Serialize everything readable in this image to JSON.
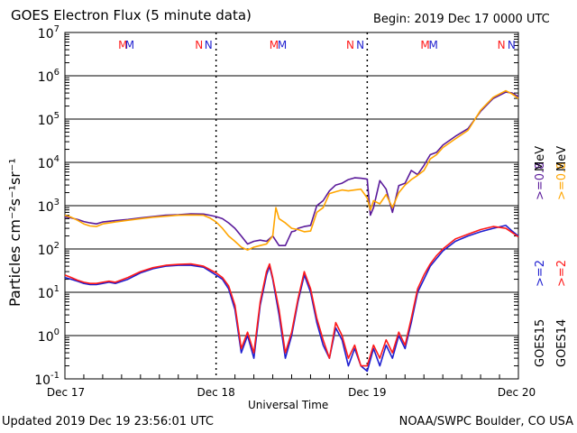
{
  "title": "GOES Electron Flux (5 minute data)",
  "begin_label": "Begin: 2019 Dec 17 0000 UTC",
  "updated_label": "Updated 2019 Dec 19 23:56:01 UTC",
  "credit_label": "NOAA/SWPC Boulder, CO USA",
  "colors": {
    "goes15_low": "#1f1fd0",
    "goes14_low": "#ff1a1a",
    "goes15_high": "#5a1a9a",
    "goes14_high": "#ffa500"
  },
  "chart_data": {
    "type": "line",
    "xlabel": "Universal Time",
    "ylabel": "Particles cm⁻²s⁻¹sr⁻¹",
    "ylim": [
      0.1,
      10000000
    ],
    "yscale": "log",
    "xlim": [
      0,
      72
    ],
    "x_unit": "hours since 2019 Dec 17 0000 UTC",
    "x_ticks": [
      {
        "x": 0,
        "label": "Dec 17"
      },
      {
        "x": 24,
        "label": "Dec 18"
      },
      {
        "x": 48,
        "label": "Dec 19"
      },
      {
        "x": 72,
        "label": "Dec 20"
      }
    ],
    "y_ticks": [
      {
        "base": "10",
        "exp": "-1"
      },
      {
        "base": "10",
        "exp": "0"
      },
      {
        "base": "10",
        "exp": "1"
      },
      {
        "base": "10",
        "exp": "2"
      },
      {
        "base": "10",
        "exp": "3"
      },
      {
        "base": "10",
        "exp": "4"
      },
      {
        "base": "10",
        "exp": "5"
      },
      {
        "base": "10",
        "exp": "6"
      },
      {
        "base": "10",
        "exp": "7"
      }
    ],
    "threshold": 1000,
    "markers": [
      {
        "x": 9.2,
        "label": "M",
        "color": "#ff1a1a"
      },
      {
        "x": 10.3,
        "label": "M",
        "color": "#1f1fd0"
      },
      {
        "x": 21.3,
        "label": "N",
        "color": "#ff1a1a"
      },
      {
        "x": 22.8,
        "label": "N",
        "color": "#1f1fd0"
      },
      {
        "x": 33.2,
        "label": "M",
        "color": "#ff1a1a"
      },
      {
        "x": 34.5,
        "label": "M",
        "color": "#1f1fd0"
      },
      {
        "x": 45.3,
        "label": "N",
        "color": "#ff1a1a"
      },
      {
        "x": 46.9,
        "label": "N",
        "color": "#1f1fd0"
      },
      {
        "x": 57.2,
        "label": "M",
        "color": "#ff1a1a"
      },
      {
        "x": 58.5,
        "label": "M",
        "color": "#1f1fd0"
      },
      {
        "x": 69.3,
        "label": "N",
        "color": "#ff1a1a"
      },
      {
        "x": 70.9,
        "label": "N",
        "color": "#1f1fd0"
      }
    ],
    "legend": {
      "goes15_label": "GOES15",
      "goes14_label": "GOES14",
      "low15": ">=2",
      "high15": ">=0.8",
      "low14": ">=2",
      "high14": ">=0.8",
      "unit": "MeV"
    },
    "series": [
      {
        "name": "GOES15 >=0.8 MeV",
        "color": "#5a1a9a",
        "points": [
          [
            0,
            550
          ],
          [
            1,
            520
          ],
          [
            2,
            480
          ],
          [
            3,
            430
          ],
          [
            4,
            400
          ],
          [
            5,
            380
          ],
          [
            6,
            420
          ],
          [
            8,
            450
          ],
          [
            10,
            480
          ],
          [
            12,
            520
          ],
          [
            14,
            560
          ],
          [
            16,
            600
          ],
          [
            18,
            620
          ],
          [
            20,
            650
          ],
          [
            22,
            640
          ],
          [
            23,
            600
          ],
          [
            24,
            560
          ],
          [
            25,
            500
          ],
          [
            26,
            400
          ],
          [
            27,
            300
          ],
          [
            28,
            200
          ],
          [
            29,
            130
          ],
          [
            30,
            150
          ],
          [
            31,
            160
          ],
          [
            32,
            150
          ],
          [
            33,
            200
          ],
          [
            34,
            120
          ],
          [
            35,
            120
          ],
          [
            36,
            250
          ],
          [
            36.5,
            260
          ],
          [
            37,
            300
          ],
          [
            38,
            330
          ],
          [
            39,
            350
          ],
          [
            40,
            1000
          ],
          [
            41,
            1300
          ],
          [
            42,
            2200
          ],
          [
            43,
            3000
          ],
          [
            44,
            3300
          ],
          [
            45,
            4000
          ],
          [
            46,
            4400
          ],
          [
            47,
            4300
          ],
          [
            48,
            4100
          ],
          [
            48.5,
            600
          ],
          [
            49,
            900
          ],
          [
            50,
            3800
          ],
          [
            51,
            2400
          ],
          [
            52,
            700
          ],
          [
            53,
            2900
          ],
          [
            54,
            3300
          ],
          [
            55,
            6500
          ],
          [
            56,
            5200
          ],
          [
            57,
            8500
          ],
          [
            58,
            15000
          ],
          [
            59,
            17000
          ],
          [
            60,
            25000
          ],
          [
            62,
            40000
          ],
          [
            64,
            60000
          ],
          [
            66,
            150000
          ],
          [
            68,
            300000
          ],
          [
            70,
            420000
          ],
          [
            71,
            400000
          ],
          [
            72,
            330000
          ]
        ]
      },
      {
        "name": "GOES14 >=0.8 MeV",
        "color": "#ffa500",
        "points": [
          [
            0,
            600
          ],
          [
            1,
            540
          ],
          [
            2,
            460
          ],
          [
            3,
            380
          ],
          [
            4,
            340
          ],
          [
            5,
            330
          ],
          [
            6,
            380
          ],
          [
            8,
            420
          ],
          [
            10,
            460
          ],
          [
            12,
            500
          ],
          [
            14,
            540
          ],
          [
            16,
            570
          ],
          [
            18,
            600
          ],
          [
            20,
            610
          ],
          [
            22,
            600
          ],
          [
            23,
            520
          ],
          [
            24,
            420
          ],
          [
            25,
            300
          ],
          [
            26,
            200
          ],
          [
            27,
            150
          ],
          [
            28,
            110
          ],
          [
            29,
            95
          ],
          [
            30,
            110
          ],
          [
            31,
            120
          ],
          [
            32,
            130
          ],
          [
            33,
            200
          ],
          [
            33.5,
            900
          ],
          [
            34,
            500
          ],
          [
            35,
            400
          ],
          [
            36,
            300
          ],
          [
            37,
            280
          ],
          [
            38,
            250
          ],
          [
            39,
            260
          ],
          [
            40,
            700
          ],
          [
            41,
            900
          ],
          [
            42,
            1900
          ],
          [
            43,
            2100
          ],
          [
            44,
            2300
          ],
          [
            45,
            2200
          ],
          [
            46,
            2300
          ],
          [
            47,
            2400
          ],
          [
            48,
            1500
          ],
          [
            48.5,
            800
          ],
          [
            49,
            1300
          ],
          [
            50,
            1100
          ],
          [
            51,
            1800
          ],
          [
            52,
            900
          ],
          [
            53,
            2000
          ],
          [
            54,
            3000
          ],
          [
            55,
            4000
          ],
          [
            56,
            5000
          ],
          [
            57,
            6500
          ],
          [
            58,
            12000
          ],
          [
            59,
            15000
          ],
          [
            60,
            22000
          ],
          [
            62,
            35000
          ],
          [
            64,
            55000
          ],
          [
            66,
            160000
          ],
          [
            68,
            320000
          ],
          [
            70,
            450000
          ],
          [
            71,
            380000
          ],
          [
            72,
            300000
          ]
        ]
      },
      {
        "name": "GOES15 >=2 MeV",
        "color": "#1f1fd0",
        "points": [
          [
            0,
            22
          ],
          [
            1,
            20
          ],
          [
            2,
            18
          ],
          [
            3,
            16
          ],
          [
            4,
            15
          ],
          [
            5,
            15
          ],
          [
            6,
            16
          ],
          [
            7,
            17
          ],
          [
            8,
            16
          ],
          [
            10,
            20
          ],
          [
            12,
            28
          ],
          [
            14,
            35
          ],
          [
            16,
            40
          ],
          [
            18,
            42
          ],
          [
            20,
            42
          ],
          [
            22,
            38
          ],
          [
            24,
            25
          ],
          [
            25,
            20
          ],
          [
            26,
            12
          ],
          [
            27,
            4
          ],
          [
            28,
            0.4
          ],
          [
            29,
            1
          ],
          [
            30,
            0.3
          ],
          [
            31,
            5
          ],
          [
            32,
            25
          ],
          [
            32.5,
            40
          ],
          [
            33,
            20
          ],
          [
            34,
            3
          ],
          [
            35,
            0.3
          ],
          [
            36,
            1
          ],
          [
            37,
            6
          ],
          [
            38,
            25
          ],
          [
            39,
            10
          ],
          [
            40,
            2
          ],
          [
            41,
            0.6
          ],
          [
            42,
            0.3
          ],
          [
            43,
            1.5
          ],
          [
            44,
            0.8
          ],
          [
            45,
            0.2
          ],
          [
            46,
            0.5
          ],
          [
            47,
            0.2
          ],
          [
            48,
            0.15
          ],
          [
            49,
            0.5
          ],
          [
            50,
            0.2
          ],
          [
            51,
            0.6
          ],
          [
            52,
            0.3
          ],
          [
            53,
            1
          ],
          [
            54,
            0.5
          ],
          [
            55,
            2
          ],
          [
            56,
            10
          ],
          [
            57,
            20
          ],
          [
            58,
            40
          ],
          [
            59,
            60
          ],
          [
            60,
            90
          ],
          [
            62,
            150
          ],
          [
            64,
            200
          ],
          [
            66,
            250
          ],
          [
            68,
            300
          ],
          [
            70,
            350
          ],
          [
            71,
            260
          ],
          [
            72,
            200
          ]
        ]
      },
      {
        "name": "GOES14 >=2 MeV",
        "color": "#ff1a1a",
        "points": [
          [
            0,
            25
          ],
          [
            1,
            22
          ],
          [
            2,
            19
          ],
          [
            3,
            17
          ],
          [
            4,
            16
          ],
          [
            5,
            16
          ],
          [
            6,
            17
          ],
          [
            7,
            18
          ],
          [
            8,
            17
          ],
          [
            10,
            22
          ],
          [
            12,
            30
          ],
          [
            14,
            37
          ],
          [
            16,
            42
          ],
          [
            18,
            44
          ],
          [
            20,
            45
          ],
          [
            22,
            40
          ],
          [
            24,
            28
          ],
          [
            25,
            22
          ],
          [
            26,
            14
          ],
          [
            27,
            5
          ],
          [
            28,
            0.5
          ],
          [
            29,
            1.2
          ],
          [
            30,
            0.4
          ],
          [
            31,
            6
          ],
          [
            32,
            30
          ],
          [
            32.5,
            45
          ],
          [
            33,
            22
          ],
          [
            34,
            4
          ],
          [
            35,
            0.4
          ],
          [
            36,
            1.2
          ],
          [
            37,
            7
          ],
          [
            38,
            30
          ],
          [
            39,
            12
          ],
          [
            40,
            2.5
          ],
          [
            41,
            0.8
          ],
          [
            42,
            0.3
          ],
          [
            43,
            2
          ],
          [
            44,
            1
          ],
          [
            45,
            0.3
          ],
          [
            46,
            0.6
          ],
          [
            47,
            0.2
          ],
          [
            48,
            0.2
          ],
          [
            49,
            0.6
          ],
          [
            50,
            0.3
          ],
          [
            51,
            0.8
          ],
          [
            52,
            0.4
          ],
          [
            53,
            1.2
          ],
          [
            54,
            0.6
          ],
          [
            55,
            2.5
          ],
          [
            56,
            12
          ],
          [
            57,
            25
          ],
          [
            58,
            45
          ],
          [
            59,
            70
          ],
          [
            60,
            100
          ],
          [
            62,
            170
          ],
          [
            64,
            220
          ],
          [
            66,
            280
          ],
          [
            68,
            330
          ],
          [
            70,
            300
          ],
          [
            71,
            240
          ],
          [
            72,
            190
          ]
        ]
      }
    ]
  }
}
